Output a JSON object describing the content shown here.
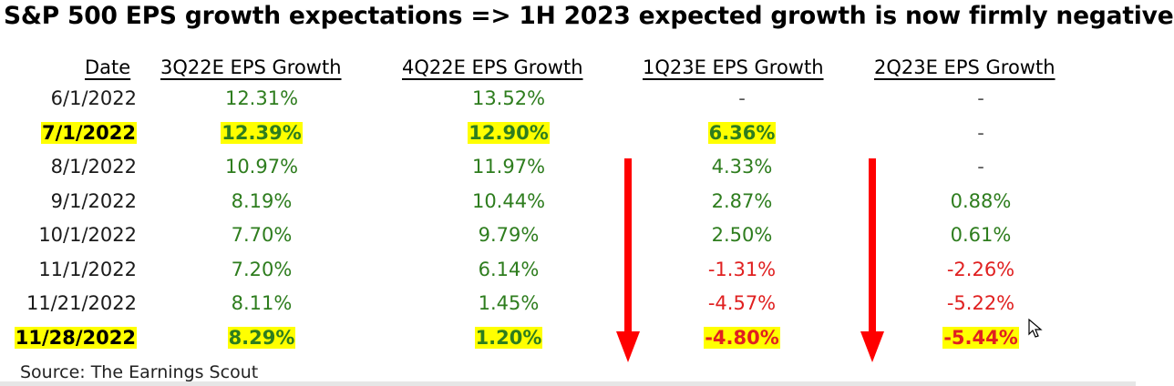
{
  "chart_data": {
    "type": "table",
    "title": "S&P 500 EPS growth expectations => 1H 2023 expected growth is now firmly negative",
    "columns": [
      "Date",
      "3Q22E EPS Growth",
      "4Q22E EPS Growth",
      "1Q23E EPS Growth",
      "2Q23E EPS Growth"
    ],
    "rows": [
      {
        "date": "6/1/2022",
        "cells": [
          "12.31%",
          "13.52%",
          "-",
          "-"
        ],
        "highlight": [
          false,
          false,
          false,
          false,
          false
        ]
      },
      {
        "date": "7/1/2022",
        "cells": [
          "12.39%",
          "12.90%",
          "6.36%",
          "-"
        ],
        "highlight": [
          true,
          true,
          true,
          true,
          false
        ]
      },
      {
        "date": "8/1/2022",
        "cells": [
          "10.97%",
          "11.97%",
          "4.33%",
          "-"
        ],
        "highlight": [
          false,
          false,
          false,
          false,
          false
        ]
      },
      {
        "date": "9/1/2022",
        "cells": [
          "8.19%",
          "10.44%",
          "2.87%",
          "0.88%"
        ],
        "highlight": [
          false,
          false,
          false,
          false,
          false
        ]
      },
      {
        "date": "10/1/2022",
        "cells": [
          "7.70%",
          "9.79%",
          "2.50%",
          "0.61%"
        ],
        "highlight": [
          false,
          false,
          false,
          false,
          false
        ]
      },
      {
        "date": "11/1/2022",
        "cells": [
          "7.20%",
          "6.14%",
          "-1.31%",
          "-2.26%"
        ],
        "highlight": [
          false,
          false,
          false,
          false,
          false
        ]
      },
      {
        "date": "11/21/2022",
        "cells": [
          "8.11%",
          "1.45%",
          "-4.57%",
          "-5.22%"
        ],
        "highlight": [
          false,
          false,
          false,
          false,
          false
        ]
      },
      {
        "date": "11/28/2022",
        "cells": [
          "8.29%",
          "1.20%",
          "-4.80%",
          "-5.44%"
        ],
        "highlight": [
          true,
          true,
          true,
          true,
          true
        ]
      }
    ],
    "source": "Source: The Earnings Scout",
    "colors": {
      "positive": "#2e7d1e",
      "negative": "#e02020",
      "dash": "#555555",
      "highlight": "#ffff00",
      "arrow": "#ff0000"
    }
  }
}
